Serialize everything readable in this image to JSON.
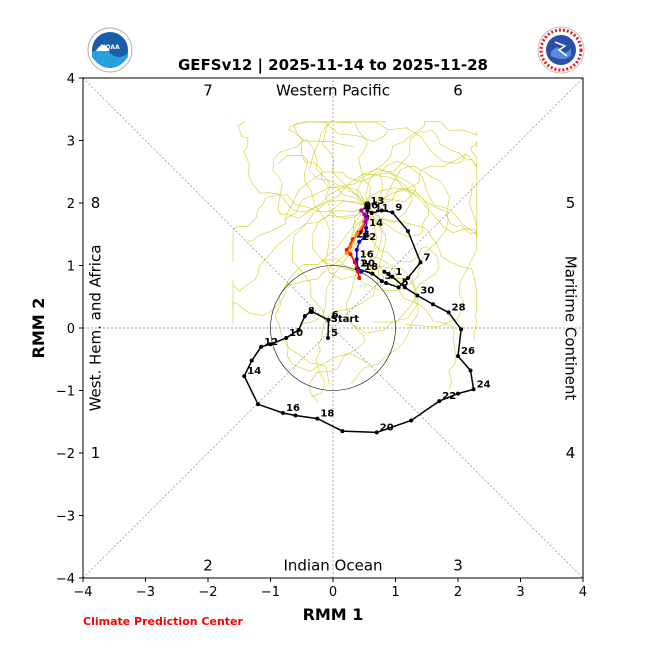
{
  "chart_data": {
    "type": "line",
    "title": "GEFSv12 | 2025-11-14 to 2025-11-28",
    "xlabel": "RMM 1",
    "ylabel": "RMM 2",
    "xlim": [
      -4,
      4
    ],
    "ylim": [
      -4,
      4
    ],
    "x_ticks": [
      "−4",
      "−3",
      "−2",
      "−1",
      "0",
      "1",
      "2",
      "3",
      "4"
    ],
    "y_ticks": [
      "−4",
      "−3",
      "−2",
      "−1",
      "0",
      "1",
      "2",
      "3",
      "4"
    ],
    "unit_circle_radius": 1,
    "region_labels": {
      "top": "Western Pacific",
      "bottom": "Indian Ocean",
      "left": "West. Hem. and Africa",
      "right": "Maritime Continent"
    },
    "phase_labels": [
      {
        "phase": "1",
        "x": -3.8,
        "y": -2.0
      },
      {
        "phase": "2",
        "x": -2.0,
        "y": -3.8
      },
      {
        "phase": "3",
        "x": 2.0,
        "y": -3.8
      },
      {
        "phase": "4",
        "x": 3.8,
        "y": -2.0
      },
      {
        "phase": "5",
        "x": 3.8,
        "y": 2.0
      },
      {
        "phase": "6",
        "x": 2.0,
        "y": 3.8
      },
      {
        "phase": "7",
        "x": -2.0,
        "y": 3.8
      },
      {
        "phase": "8",
        "x": -3.8,
        "y": 2.0
      }
    ],
    "series": [
      {
        "role": "observed",
        "color": "#000000",
        "start_label": "Start",
        "points": [
          {
            "x": 0.38,
            "y": 0.95,
            "label": "1"
          },
          {
            "x": 0.63,
            "y": 0.87
          },
          {
            "x": 0.78,
            "y": 0.75,
            "label": "3"
          },
          {
            "x": 0.85,
            "y": 0.72
          },
          {
            "x": 1.05,
            "y": 0.65,
            "label": "5"
          },
          {
            "x": 1.2,
            "y": 0.8
          },
          {
            "x": 1.4,
            "y": 1.05,
            "label": "7"
          },
          {
            "x": 1.2,
            "y": 1.55
          },
          {
            "x": 0.95,
            "y": 1.85,
            "label": "9"
          },
          {
            "x": 0.78,
            "y": 1.88
          },
          {
            "x": 0.62,
            "y": 1.84,
            "label": "11"
          },
          {
            "x": 0.55,
            "y": 1.88
          },
          {
            "x": 0.55,
            "y": 1.95,
            "label": "13"
          }
        ]
      },
      {
        "role": "history",
        "color": "#000000",
        "points": [
          {
            "x": -0.08,
            "y": -0.16,
            "label": "5"
          },
          {
            "x": -0.07,
            "y": 0.13,
            "label": "6"
          },
          {
            "x": -0.35,
            "y": 0.27
          },
          {
            "x": -0.45,
            "y": 0.19,
            "label": "8"
          },
          {
            "x": -0.55,
            "y": -0.03
          },
          {
            "x": -0.75,
            "y": -0.16,
            "label": "10"
          },
          {
            "x": -1.0,
            "y": -0.26
          },
          {
            "x": -1.15,
            "y": -0.3,
            "label": "12"
          },
          {
            "x": -1.3,
            "y": -0.52
          },
          {
            "x": -1.42,
            "y": -0.77,
            "label": "14"
          },
          {
            "x": -1.2,
            "y": -1.22
          },
          {
            "x": -0.8,
            "y": -1.36,
            "label": "16"
          },
          {
            "x": -0.6,
            "y": -1.4
          },
          {
            "x": -0.25,
            "y": -1.45,
            "label": "18"
          },
          {
            "x": 0.15,
            "y": -1.65
          },
          {
            "x": 0.7,
            "y": -1.67,
            "label": "20"
          },
          {
            "x": 1.25,
            "y": -1.48
          },
          {
            "x": 1.7,
            "y": -1.17,
            "label": "22"
          },
          {
            "x": 2.0,
            "y": -1.05
          },
          {
            "x": 2.25,
            "y": -0.98,
            "label": "24"
          },
          {
            "x": 2.2,
            "y": -0.68
          },
          {
            "x": 2.0,
            "y": -0.45,
            "label": "26"
          },
          {
            "x": 2.05,
            "y": -0.02
          },
          {
            "x": 1.85,
            "y": 0.25,
            "label": "28"
          },
          {
            "x": 1.6,
            "y": 0.38
          },
          {
            "x": 1.35,
            "y": 0.52,
            "label": "30"
          },
          {
            "x": 1.15,
            "y": 0.65
          },
          {
            "x": 0.95,
            "y": 0.82,
            "label": "1"
          },
          {
            "x": 0.82,
            "y": 0.9
          }
        ]
      },
      {
        "role": "ensemble-mean-blue",
        "color": "#0000cc",
        "points": [
          {
            "x": 0.55,
            "y": 1.95
          },
          {
            "x": 0.55,
            "y": 1.78
          },
          {
            "x": 0.53,
            "y": 1.6,
            "label": "14"
          },
          {
            "x": 0.5,
            "y": 1.45
          },
          {
            "x": 0.42,
            "y": 1.38,
            "label": "22"
          },
          {
            "x": 0.38,
            "y": 1.25
          },
          {
            "x": 0.38,
            "y": 1.1,
            "label": "16"
          },
          {
            "x": 0.4,
            "y": 0.95,
            "label": "20"
          },
          {
            "x": 0.45,
            "y": 0.9,
            "label": "18"
          }
        ]
      },
      {
        "role": "ensemble-mean-red",
        "color": "#ff0000",
        "points": [
          {
            "x": 0.55,
            "y": 1.75
          },
          {
            "x": 0.45,
            "y": 1.55
          },
          {
            "x": 0.32,
            "y": 1.42,
            "label": "24"
          },
          {
            "x": 0.22,
            "y": 1.25
          },
          {
            "x": 0.28,
            "y": 1.18
          },
          {
            "x": 0.35,
            "y": 1.05
          },
          {
            "x": 0.4,
            "y": 0.9
          },
          {
            "x": 0.42,
            "y": 0.8
          }
        ]
      },
      {
        "role": "ensemble-mean-orange",
        "color": "#ff8c00",
        "points": [
          {
            "x": 0.5,
            "y": 1.7
          },
          {
            "x": 0.38,
            "y": 1.5
          },
          {
            "x": 0.28,
            "y": 1.3
          },
          {
            "x": 0.22,
            "y": 1.2
          }
        ]
      },
      {
        "role": "ensemble-mean-purple",
        "color": "#aa00aa",
        "points": [
          {
            "x": 0.55,
            "y": 1.95
          },
          {
            "x": 0.45,
            "y": 1.88,
            "label": "26"
          },
          {
            "x": 0.5,
            "y": 1.82
          },
          {
            "x": 0.52,
            "y": 1.7
          }
        ]
      }
    ],
    "ensemble_members": {
      "color": "#c8c800",
      "count": 30
    }
  },
  "footer": {
    "credit": "Climate Prediction Center"
  },
  "logos": {
    "left": "noaa-logo",
    "right": "nws-logo"
  }
}
